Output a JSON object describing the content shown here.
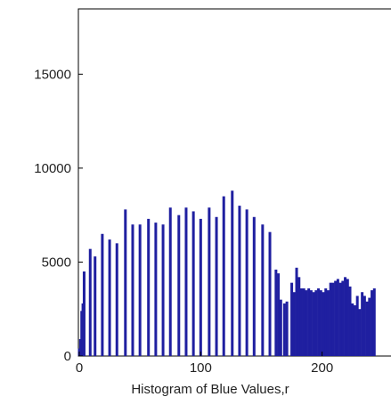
{
  "chart_data": {
    "type": "bar",
    "title": "",
    "xlabel": "Histogram of Blue Values,r",
    "ylabel": "",
    "xlim": [
      0,
      256
    ],
    "ylim": [
      0,
      18000
    ],
    "xticks": [
      0,
      100,
      200
    ],
    "yticks": [
      0,
      5000,
      10000,
      15000
    ],
    "grid": false,
    "legend": "none",
    "bar_color": "#1f1fa0",
    "series": [
      {
        "x": [
          0,
          1,
          2,
          3,
          4,
          9,
          13,
          19,
          25,
          31,
          38,
          44,
          50,
          57,
          63,
          69,
          75,
          82,
          88,
          94,
          100,
          107,
          113,
          119,
          126,
          132,
          138,
          144,
          151,
          157,
          162,
          164,
          166,
          169,
          171,
          175,
          177,
          179,
          181,
          183,
          185,
          187,
          189,
          191,
          193,
          195,
          197,
          199,
          201,
          203,
          205,
          207,
          209,
          211,
          213,
          215,
          217,
          219,
          221,
          223,
          225,
          227,
          229,
          231,
          233,
          235,
          237,
          239,
          241,
          243
        ],
        "values": [
          400,
          900,
          2400,
          2800,
          4500,
          5700,
          5300,
          6500,
          6200,
          6000,
          7800,
          7000,
          7000,
          7300,
          7100,
          7000,
          7900,
          7500,
          7900,
          7700,
          7300,
          7900,
          7400,
          8500,
          8800,
          8000,
          7800,
          7400,
          7000,
          6600,
          4600,
          4400,
          3000,
          2800,
          2900,
          3900,
          3400,
          4700,
          4200,
          3600,
          3600,
          3500,
          3600,
          3500,
          3400,
          3500,
          3600,
          3500,
          3400,
          3600,
          3500,
          3900,
          3900,
          4000,
          4100,
          3900,
          4000,
          4200,
          4100,
          3700,
          2800,
          2700,
          3200,
          2500,
          3400,
          3200,
          2900,
          3100,
          3500,
          3600
        ]
      }
    ]
  }
}
